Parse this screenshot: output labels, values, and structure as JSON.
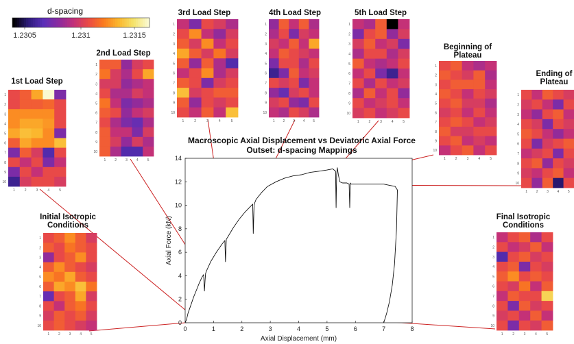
{
  "colorbar": {
    "title": "d-spacing",
    "ticks": [
      "1.2305",
      "1.231",
      "1.2315"
    ],
    "colors": [
      "#000000",
      "#2d1b7a",
      "#5b2fb8",
      "#8a2aa0",
      "#c2307a",
      "#ea4a45",
      "#fb7a1e",
      "#fbb62d",
      "#f5e36a",
      "#fafad2"
    ]
  },
  "chart_data": {
    "type": "line",
    "title": "Macroscopic Axial Displacement vs Deviatoric Axial Force",
    "subtitle": "Outset: d-spacing Mappings",
    "xlabel": "Axial Displacement (mm)",
    "ylabel": "Axial Force (kN)",
    "xlim": [
      0,
      8
    ],
    "ylim": [
      0,
      14
    ],
    "xticks": [
      0,
      1,
      2,
      3,
      4,
      5,
      6,
      7,
      8
    ],
    "yticks": [
      0,
      2,
      4,
      6,
      8,
      10,
      12,
      14
    ],
    "series": [
      {
        "x": [
          0,
          0.05,
          0.1,
          0.2,
          0.3,
          0.4,
          0.5,
          0.6,
          0.65,
          0.68,
          0.7,
          0.72,
          0.75,
          0.9,
          1.1,
          1.3,
          1.4,
          1.42,
          1.45,
          1.5,
          1.7,
          1.9,
          2.1,
          2.3,
          2.38,
          2.4,
          2.43,
          2.45,
          2.5,
          2.7,
          2.9,
          3.2,
          3.5,
          3.8,
          4.1,
          4.4,
          4.7,
          5.0,
          5.2,
          5.3,
          5.32,
          5.34,
          5.36,
          5.4,
          5.45,
          5.55,
          5.7,
          5.78,
          5.8,
          5.82,
          5.85,
          5.9,
          6.1,
          6.4,
          6.7,
          7.0,
          7.2,
          7.4,
          7.48,
          7.45,
          7.38,
          7.3,
          7.2,
          7.1,
          7.0
        ],
        "y": [
          0,
          0.3,
          0.8,
          1.5,
          2.2,
          2.8,
          3.4,
          3.9,
          4.1,
          2.7,
          3.6,
          4.2,
          4.4,
          5.2,
          6.0,
          6.7,
          7.0,
          5.2,
          7.1,
          7.3,
          8.1,
          8.8,
          9.4,
          9.9,
          10.1,
          7.6,
          10.0,
          10.2,
          10.5,
          11.1,
          11.6,
          12.0,
          12.3,
          12.5,
          12.6,
          12.8,
          12.9,
          13.0,
          13.1,
          12.9,
          9.8,
          12.6,
          13.2,
          12.6,
          12.0,
          11.9,
          11.9,
          11.8,
          9.8,
          11.9,
          11.8,
          11.8,
          11.8,
          11.8,
          11.8,
          11.8,
          11.7,
          11.6,
          11.3,
          8.0,
          5.0,
          3.2,
          1.8,
          0.8,
          0
        ]
      }
    ]
  },
  "maps": [
    {
      "id": "1st",
      "title": "1st Load Step",
      "ticks_x": [
        "1",
        "2",
        "3",
        "4",
        "5"
      ],
      "ticks_y": [
        "1",
        "2",
        "3",
        "4",
        "5",
        "6",
        "7",
        "8",
        "9",
        "10"
      ],
      "grid": [
        [
          0.55,
          0.6,
          0.75,
          1.0,
          0.3
        ],
        [
          0.55,
          0.6,
          0.6,
          0.62,
          0.55
        ],
        [
          0.7,
          0.7,
          0.7,
          0.7,
          0.55
        ],
        [
          0.7,
          0.75,
          0.75,
          0.72,
          0.55
        ],
        [
          0.75,
          0.8,
          0.78,
          0.7,
          0.3
        ],
        [
          0.6,
          0.75,
          0.7,
          0.7,
          0.8
        ],
        [
          0.3,
          0.6,
          0.5,
          0.2,
          0.55
        ],
        [
          0.55,
          0.45,
          0.55,
          0.3,
          0.45
        ],
        [
          0.3,
          0.55,
          0.45,
          0.55,
          0.55
        ],
        [
          0.15,
          0.5,
          0.55,
          0.55,
          0.5
        ]
      ]
    },
    {
      "id": "2nd",
      "title": "2nd Load Step",
      "ticks_x": [
        "1",
        "2",
        "3",
        "4",
        "5"
      ],
      "ticks_y": [
        "1",
        "2",
        "3",
        "4",
        "5",
        "6",
        "7",
        "8",
        "9",
        "10"
      ],
      "grid": [
        [
          0.6,
          0.6,
          0.35,
          0.5,
          0.55
        ],
        [
          0.65,
          0.5,
          0.4,
          0.55,
          0.75
        ],
        [
          0.5,
          0.5,
          0.35,
          0.4,
          0.45
        ],
        [
          0.55,
          0.4,
          0.4,
          0.5,
          0.45
        ],
        [
          0.65,
          0.45,
          0.3,
          0.35,
          0.4
        ],
        [
          0.6,
          0.55,
          0.35,
          0.45,
          0.5
        ],
        [
          0.55,
          0.4,
          0.3,
          0.25,
          0.4
        ],
        [
          0.6,
          0.45,
          0.45,
          0.3,
          0.5
        ],
        [
          0.6,
          0.5,
          0.35,
          0.5,
          0.4
        ],
        [
          0.6,
          0.4,
          0.2,
          0.2,
          0.45
        ]
      ]
    },
    {
      "id": "3rd",
      "title": "3rd Load Step",
      "ticks_x": [
        "1",
        "2",
        "3",
        "4",
        "5"
      ],
      "ticks_y": [
        "1",
        "2",
        "3",
        "4",
        "5",
        "6",
        "7",
        "8",
        "9",
        "10"
      ],
      "grid": [
        [
          0.45,
          0.3,
          0.55,
          0.5,
          0.4
        ],
        [
          0.55,
          0.7,
          0.45,
          0.35,
          0.5
        ],
        [
          0.6,
          0.5,
          0.7,
          0.45,
          0.55
        ],
        [
          0.75,
          0.6,
          0.5,
          0.65,
          0.5
        ],
        [
          0.6,
          0.35,
          0.6,
          0.4,
          0.2
        ],
        [
          0.45,
          0.55,
          0.7,
          0.4,
          0.5
        ],
        [
          0.6,
          0.55,
          0.3,
          0.5,
          0.55
        ],
        [
          0.8,
          0.5,
          0.55,
          0.6,
          0.6
        ],
        [
          0.6,
          0.35,
          0.55,
          0.5,
          0.55
        ],
        [
          0.55,
          0.45,
          0.6,
          0.45,
          0.8
        ]
      ]
    },
    {
      "id": "4th",
      "title": "4th Load Step",
      "ticks_x": [
        "1",
        "2",
        "3",
        "4",
        "5"
      ],
      "ticks_y": [
        "1",
        "2",
        "3",
        "4",
        "5",
        "6",
        "7",
        "8",
        "9",
        "10"
      ],
      "grid": [
        [
          0.35,
          0.6,
          0.45,
          0.6,
          0.4
        ],
        [
          0.4,
          0.55,
          0.3,
          0.5,
          0.45
        ],
        [
          0.5,
          0.45,
          0.6,
          0.45,
          0.75
        ],
        [
          0.45,
          0.6,
          0.55,
          0.5,
          0.45
        ],
        [
          0.3,
          0.55,
          0.55,
          0.4,
          0.55
        ],
        [
          0.15,
          0.3,
          0.6,
          0.45,
          0.5
        ],
        [
          0.55,
          0.5,
          0.55,
          0.3,
          0.45
        ],
        [
          0.35,
          0.25,
          0.5,
          0.55,
          0.45
        ],
        [
          0.5,
          0.55,
          0.35,
          0.3,
          0.55
        ],
        [
          0.45,
          0.4,
          0.55,
          0.5,
          0.4
        ]
      ]
    },
    {
      "id": "5th",
      "title": "5th Load Step",
      "ticks_x": [
        "1",
        "2",
        "3",
        "4",
        "5"
      ],
      "ticks_y": [
        "1",
        "2",
        "3",
        "4",
        "5",
        "6",
        "7",
        "8",
        "9",
        "10"
      ],
      "grid": [
        [
          0.45,
          0.4,
          0.6,
          0.0,
          0.45
        ],
        [
          0.3,
          0.55,
          0.6,
          0.35,
          0.5
        ],
        [
          0.5,
          0.6,
          0.45,
          0.5,
          0.3
        ],
        [
          0.4,
          0.55,
          0.55,
          0.4,
          0.5
        ],
        [
          0.6,
          0.45,
          0.4,
          0.45,
          0.55
        ],
        [
          0.45,
          0.55,
          0.3,
          0.15,
          0.45
        ],
        [
          0.55,
          0.4,
          0.55,
          0.45,
          0.5
        ],
        [
          0.4,
          0.6,
          0.45,
          0.55,
          0.35
        ],
        [
          0.55,
          0.45,
          0.5,
          0.55,
          0.45
        ],
        [
          0.5,
          0.55,
          0.45,
          0.5,
          0.55
        ]
      ]
    },
    {
      "id": "beginning",
      "title": "Beginning of\nPlateau",
      "ticks_x": [
        "1",
        "2",
        "3",
        "4",
        "5"
      ],
      "ticks_y": [
        "1",
        "2",
        "3",
        "4",
        "5",
        "6",
        "7",
        "8",
        "9",
        "10"
      ],
      "grid": [
        [
          0.55,
          0.6,
          0.45,
          0.4,
          0.45
        ],
        [
          0.6,
          0.55,
          0.5,
          0.6,
          0.4
        ],
        [
          0.55,
          0.6,
          0.6,
          0.6,
          0.45
        ],
        [
          0.6,
          0.55,
          0.45,
          0.55,
          0.5
        ],
        [
          0.55,
          0.6,
          0.5,
          0.5,
          0.4
        ],
        [
          0.5,
          0.55,
          0.45,
          0.55,
          0.45
        ],
        [
          0.55,
          0.6,
          0.55,
          0.45,
          0.5
        ],
        [
          0.6,
          0.5,
          0.5,
          0.55,
          0.55
        ],
        [
          0.55,
          0.6,
          0.45,
          0.5,
          0.45
        ],
        [
          0.45,
          0.55,
          0.6,
          0.45,
          0.55
        ]
      ]
    },
    {
      "id": "ending",
      "title": "Ending of\nPlateau",
      "ticks_x": [
        "1",
        "2",
        "3",
        "4",
        "5"
      ],
      "ticks_y": [
        "1",
        "2",
        "3",
        "4",
        "5",
        "6",
        "7",
        "8",
        "9",
        "10"
      ],
      "grid": [
        [
          0.55,
          0.45,
          0.6,
          0.55,
          0.5
        ],
        [
          0.5,
          0.55,
          0.45,
          0.3,
          0.55
        ],
        [
          0.45,
          0.35,
          0.55,
          0.6,
          0.45
        ],
        [
          0.55,
          0.5,
          0.3,
          0.55,
          0.5
        ],
        [
          0.6,
          0.55,
          0.45,
          0.35,
          0.45
        ],
        [
          0.55,
          0.3,
          0.5,
          0.55,
          0.6
        ],
        [
          0.45,
          0.5,
          0.55,
          0.3,
          0.55
        ],
        [
          0.55,
          0.6,
          0.35,
          0.55,
          0.5
        ],
        [
          0.5,
          0.45,
          0.55,
          0.6,
          0.45
        ],
        [
          0.55,
          0.35,
          0.6,
          0.1,
          0.55
        ]
      ]
    },
    {
      "id": "initial",
      "title": "Initial Isotropic\nConditions",
      "ticks_x": [
        "1",
        "2",
        "3",
        "4",
        "5"
      ],
      "ticks_y": [
        "1",
        "2",
        "3",
        "4",
        "5",
        "6",
        "7",
        "8",
        "9",
        "10"
      ],
      "grid": [
        [
          0.55,
          0.6,
          0.7,
          0.6,
          0.5
        ],
        [
          0.6,
          0.55,
          0.65,
          0.6,
          0.55
        ],
        [
          0.35,
          0.55,
          0.6,
          0.7,
          0.55
        ],
        [
          0.6,
          0.7,
          0.6,
          0.55,
          0.5
        ],
        [
          0.7,
          0.65,
          0.75,
          0.6,
          0.55
        ],
        [
          0.6,
          0.75,
          0.7,
          0.8,
          0.65
        ],
        [
          0.25,
          0.55,
          0.6,
          0.75,
          0.5
        ],
        [
          0.55,
          0.45,
          0.6,
          0.65,
          0.55
        ],
        [
          0.5,
          0.6,
          0.55,
          0.6,
          0.5
        ],
        [
          0.55,
          0.6,
          0.55,
          0.5,
          0.45
        ]
      ]
    },
    {
      "id": "final",
      "title": "Final Isotropic\nConditions",
      "ticks_x": [
        "1",
        "2",
        "3",
        "4",
        "5"
      ],
      "ticks_y": [
        "1",
        "2",
        "3",
        "4",
        "5",
        "6",
        "7",
        "8",
        "9",
        "10"
      ],
      "grid": [
        [
          0.45,
          0.55,
          0.6,
          0.4,
          0.55
        ],
        [
          0.55,
          0.45,
          0.5,
          0.6,
          0.45
        ],
        [
          0.2,
          0.55,
          0.6,
          0.5,
          0.55
        ],
        [
          0.55,
          0.6,
          0.3,
          0.55,
          0.5
        ],
        [
          0.6,
          0.7,
          0.55,
          0.6,
          0.55
        ],
        [
          0.55,
          0.5,
          0.65,
          0.45,
          0.6
        ],
        [
          0.45,
          0.6,
          0.55,
          0.55,
          0.85
        ],
        [
          0.55,
          0.3,
          0.6,
          0.5,
          0.55
        ],
        [
          0.5,
          0.55,
          0.45,
          0.6,
          0.45
        ],
        [
          0.55,
          0.3,
          0.55,
          0.5,
          0.6
        ]
      ]
    }
  ]
}
